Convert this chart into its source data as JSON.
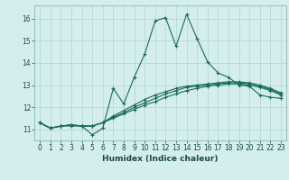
{
  "xlabel": "Humidex (Indice chaleur)",
  "bg_color": "#d4eeed",
  "grid_color": "#b8d8d4",
  "line_color": "#1a6b5a",
  "xlim": [
    -0.5,
    23.5
  ],
  "ylim": [
    10.5,
    16.6
  ],
  "xticks": [
    0,
    1,
    2,
    3,
    4,
    5,
    6,
    7,
    8,
    9,
    10,
    11,
    12,
    13,
    14,
    15,
    16,
    17,
    18,
    19,
    20,
    21,
    22,
    23
  ],
  "yticks": [
    11,
    12,
    13,
    14,
    15,
    16
  ],
  "line1_x": [
    0,
    1,
    2,
    3,
    4,
    5,
    6,
    7,
    8,
    9,
    10,
    11,
    12,
    13,
    14,
    15,
    16,
    17,
    18,
    19,
    20,
    21,
    22,
    23
  ],
  "line1_y": [
    11.3,
    11.05,
    11.15,
    11.15,
    11.15,
    10.75,
    11.05,
    12.85,
    12.15,
    13.35,
    14.4,
    15.9,
    16.05,
    14.75,
    16.2,
    15.1,
    14.05,
    13.55,
    13.35,
    13.0,
    12.95,
    12.55,
    12.45,
    12.4
  ],
  "line2_x": [
    0,
    1,
    2,
    3,
    4,
    5,
    6,
    7,
    8,
    9,
    10,
    11,
    12,
    13,
    14,
    15,
    16,
    17,
    18,
    19,
    20,
    21,
    22,
    23
  ],
  "line2_y": [
    11.3,
    11.05,
    11.15,
    11.2,
    11.15,
    11.15,
    11.3,
    11.5,
    11.7,
    11.9,
    12.1,
    12.25,
    12.45,
    12.6,
    12.75,
    12.85,
    12.95,
    13.0,
    13.05,
    13.05,
    13.0,
    12.9,
    12.75,
    12.55
  ],
  "line3_x": [
    0,
    1,
    2,
    3,
    4,
    5,
    6,
    7,
    8,
    9,
    10,
    11,
    12,
    13,
    14,
    15,
    16,
    17,
    18,
    19,
    20,
    21,
    22,
    23
  ],
  "line3_y": [
    11.3,
    11.05,
    11.15,
    11.2,
    11.15,
    11.15,
    11.3,
    11.55,
    11.75,
    12.0,
    12.2,
    12.4,
    12.6,
    12.75,
    12.9,
    12.95,
    13.0,
    13.05,
    13.1,
    13.1,
    13.05,
    12.95,
    12.8,
    12.6
  ],
  "line4_x": [
    0,
    1,
    2,
    3,
    4,
    5,
    6,
    7,
    8,
    9,
    10,
    11,
    12,
    13,
    14,
    15,
    16,
    17,
    18,
    19,
    20,
    21,
    22,
    23
  ],
  "line4_y": [
    11.3,
    11.05,
    11.15,
    11.2,
    11.15,
    11.15,
    11.3,
    11.6,
    11.85,
    12.1,
    12.35,
    12.55,
    12.7,
    12.85,
    12.95,
    13.0,
    13.05,
    13.1,
    13.15,
    13.15,
    13.1,
    13.0,
    12.85,
    12.65
  ]
}
